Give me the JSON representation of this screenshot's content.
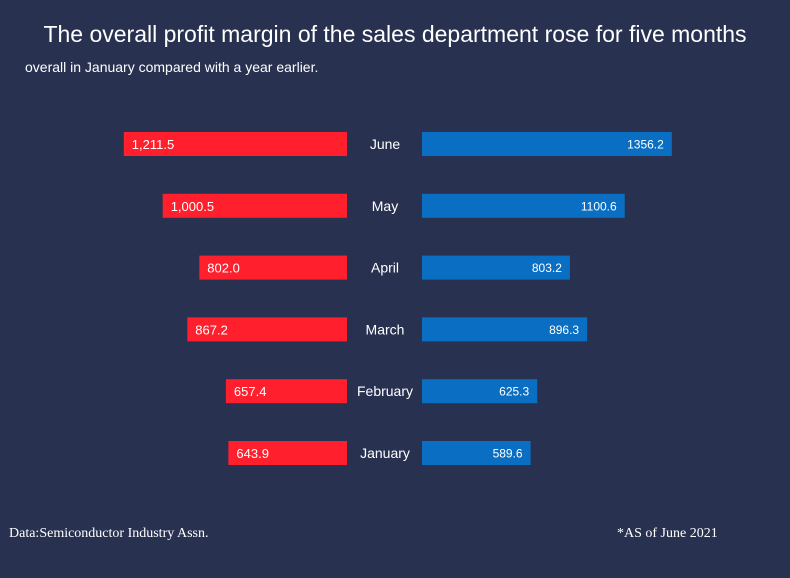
{
  "chart_data": {
    "type": "bar",
    "title": "The overall profit margin of the sales department rose for five months",
    "subtitle": "overall in January compared with a year earlier.",
    "categories": [
      "June",
      "May",
      "April",
      "March",
      "February",
      "January"
    ],
    "series": [
      {
        "name": "left",
        "color": "#ff1f2d",
        "values": [
          1211.5,
          1000.5,
          802.0,
          867.2,
          657.4,
          643.9
        ],
        "labels": [
          "1,211.5",
          "1,000.5",
          "802.0",
          "867.2",
          "657.4",
          "643.9"
        ]
      },
      {
        "name": "right",
        "color": "#0a6fc2",
        "values": [
          1356.2,
          1100.6,
          803.2,
          896.3,
          625.3,
          589.6
        ],
        "labels": [
          "1356.2",
          "1100.6",
          "803.2",
          "896.3",
          "625.3",
          "589.6"
        ]
      }
    ],
    "background": "#283250"
  },
  "footer": {
    "source": "Data:Semiconductor Industry Assn.",
    "note": "*AS of June 2021"
  }
}
